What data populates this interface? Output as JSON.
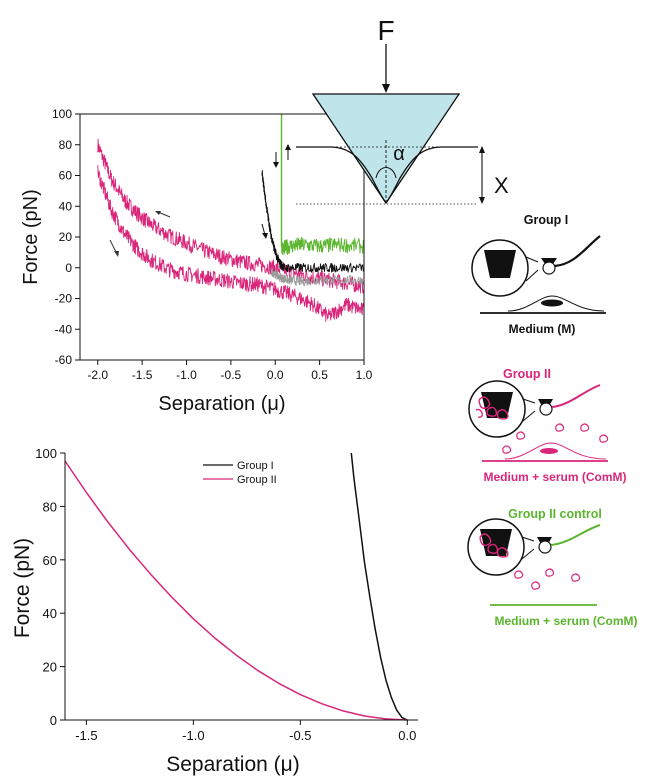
{
  "colors": {
    "group1": "#111111",
    "group2": "#d9267a",
    "group2_control": "#5bb52e",
    "tip_fill": "#bfe4ea",
    "grey_trace": "#9a9a9a"
  },
  "diagram": {
    "force_label": "F",
    "angle_label": "α",
    "depth_label": "X"
  },
  "chart_data": [
    {
      "type": "line",
      "name": "raw-force-curves",
      "xlabel": "Separation (μ)",
      "ylabel": "Force (pN)",
      "xlim": [
        -2.2,
        1.0
      ],
      "ylim": [
        -60,
        100
      ],
      "xticks": [
        "-2.0",
        "-1.5",
        "-1.0",
        "-0.5",
        "0.0",
        "0.5",
        "1.0"
      ],
      "xtick_values": [
        -2.0,
        -1.5,
        -1.0,
        -0.5,
        0.0,
        0.5,
        1.0
      ],
      "yticks": [
        "-60",
        "-40",
        "-20",
        "0",
        "20",
        "40",
        "60",
        "80",
        "100"
      ],
      "ytick_values": [
        -60,
        -40,
        -20,
        0,
        20,
        40,
        60,
        80,
        100
      ],
      "series": [
        {
          "color": "#d9267a",
          "noise": 5,
          "x": [
            -2.0,
            -1.85,
            -1.7,
            -1.55,
            -1.4,
            -1.2,
            -1.0,
            -0.8,
            -0.6,
            -0.4,
            -0.2,
            0.0,
            0.2,
            0.4,
            0.6,
            0.8,
            1.0
          ],
          "y": [
            80,
            58,
            44,
            35,
            28,
            21,
            16,
            11,
            7,
            4,
            2,
            0,
            -3,
            -6,
            -8,
            -10,
            -12
          ]
        },
        {
          "color": "#d9267a",
          "noise": 5,
          "x": [
            -2.0,
            -1.85,
            -1.7,
            -1.55,
            -1.4,
            -1.2,
            -1.0,
            -0.8,
            -0.6,
            -0.4,
            -0.2,
            0.0,
            0.2,
            0.4,
            0.6,
            0.8,
            1.0
          ],
          "y": [
            62,
            38,
            22,
            12,
            5,
            -1,
            -4,
            -6,
            -8,
            -10,
            -11,
            -14,
            -18,
            -23,
            -32,
            -24,
            -28
          ]
        },
        {
          "color": "#9a9a9a",
          "noise": 3,
          "x": [
            -0.05,
            0.05,
            0.15,
            0.3,
            0.5,
            0.7,
            1.0
          ],
          "y": [
            -2,
            -6,
            -8,
            -9,
            -8,
            -8,
            -8
          ]
        },
        {
          "color": "#5bb52e",
          "noise": 5,
          "x": [
            0.07,
            0.15,
            0.3,
            0.5,
            0.7,
            1.0
          ],
          "y": [
            12,
            14,
            15,
            14,
            15,
            14
          ]
        },
        {
          "color": "#111111",
          "noise": 3,
          "x": [
            -0.15,
            -0.1,
            -0.05,
            0.0,
            0.05,
            0.1,
            0.3,
            0.5,
            0.7,
            1.0
          ],
          "y": [
            62,
            40,
            22,
            10,
            3,
            0,
            0,
            0,
            0,
            0
          ]
        },
        {
          "color": "#5bb52e",
          "noise": 0,
          "x": [
            0.07,
            0.07
          ],
          "y": [
            100,
            14
          ]
        }
      ]
    },
    {
      "type": "line",
      "name": "model-fit-curves",
      "xlabel": "Separation (μ)",
      "ylabel": "Force (pN)",
      "xlim": [
        -1.6,
        0.05
      ],
      "ylim": [
        0,
        100
      ],
      "xticks": [
        "-1.5",
        "-1.0",
        "-0.5",
        "0.0"
      ],
      "xtick_values": [
        -1.5,
        -1.0,
        -0.5,
        0.0
      ],
      "yticks": [
        "0",
        "20",
        "40",
        "60",
        "80",
        "100"
      ],
      "ytick_values": [
        0,
        20,
        40,
        60,
        80,
        100
      ],
      "legend": [
        "Group I",
        "Group II"
      ],
      "series": [
        {
          "name": "Group I",
          "color": "#111111",
          "x": [
            -0.262,
            -0.25,
            -0.225,
            -0.2,
            -0.175,
            -0.15,
            -0.125,
            -0.1,
            -0.075,
            -0.05,
            -0.025,
            0.0
          ],
          "y": [
            100,
            91,
            75,
            59,
            46,
            34,
            23.5,
            15,
            8.5,
            3.8,
            0.9,
            0
          ]
        },
        {
          "name": "Group II",
          "color": "#d9267a",
          "x": [
            -1.6,
            -1.5,
            -1.4,
            -1.3,
            -1.2,
            -1.1,
            -1.0,
            -0.9,
            -0.8,
            -0.7,
            -0.6,
            -0.5,
            -0.4,
            -0.3,
            -0.2,
            -0.1,
            0.0
          ],
          "y": [
            97,
            85.2,
            74.2,
            64,
            54.6,
            45.9,
            37.9,
            30.7,
            24.3,
            18.6,
            13.7,
            9.5,
            6.1,
            3.4,
            1.5,
            0.4,
            0
          ]
        }
      ]
    }
  ],
  "schematics": [
    {
      "title": "Group I",
      "subtitle": "Medium (M)",
      "title_color": "#111111",
      "sub_color": "#111111"
    },
    {
      "title": "Group II",
      "subtitle": "Medium + serum (ComM)",
      "title_color": "#d9267a",
      "sub_color": "#d9267a"
    },
    {
      "title": "Group II control",
      "subtitle": "Medium + serum (ComM)",
      "title_color": "#5bb52e",
      "sub_color": "#5bb52e"
    }
  ]
}
